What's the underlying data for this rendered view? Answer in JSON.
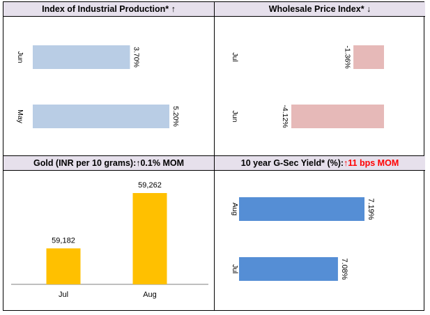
{
  "panels": {
    "iip": {
      "title": "Index of Industrial Production*",
      "arrow": "↑",
      "highlight": ""
    },
    "wpi": {
      "title": "Wholesale Price Index*",
      "arrow": "↓",
      "highlight": ""
    },
    "gold": {
      "title": "Gold (INR per 10 grams): ",
      "arrow": "↑",
      "highlight": "",
      "suffix": "0.1% MOM"
    },
    "gsec": {
      "title": "10 year G-Sec Yield* (%):",
      "arrow": "↑",
      "highlight": "11 bps MOM",
      "suffix": ""
    }
  },
  "colors": {
    "header_bg": "#e6e0ec",
    "iip_bar": "#b9cde5",
    "wpi_bar": "#e6b9b8",
    "gold_bar": "#ffc000",
    "gsec_bar": "#558ed5",
    "highlight": "#ff0000"
  },
  "chart_data": [
    {
      "id": "iip",
      "type": "bar",
      "orientation": "horizontal",
      "categories": [
        "Jun",
        "May"
      ],
      "values": [
        3.7,
        5.2
      ],
      "labels": [
        "3.70%",
        "5.20%"
      ],
      "xlim": [
        0,
        5.2
      ]
    },
    {
      "id": "wpi",
      "type": "bar",
      "orientation": "horizontal",
      "categories": [
        "Jul",
        "Jun"
      ],
      "values": [
        -1.36,
        -4.12
      ],
      "labels": [
        "-1.36%",
        "-4.12%"
      ],
      "xlim": [
        -4.12,
        0
      ]
    },
    {
      "id": "gold",
      "type": "bar",
      "orientation": "vertical",
      "categories": [
        "Jul",
        "Aug"
      ],
      "values": [
        59182,
        59262
      ],
      "labels": [
        "59,182",
        "59,262"
      ]
    },
    {
      "id": "gsec",
      "type": "bar",
      "orientation": "horizontal",
      "categories": [
        "Aug",
        "Jul"
      ],
      "values": [
        7.19,
        7.08
      ],
      "labels": [
        "7.19%",
        "7.08%"
      ]
    }
  ]
}
